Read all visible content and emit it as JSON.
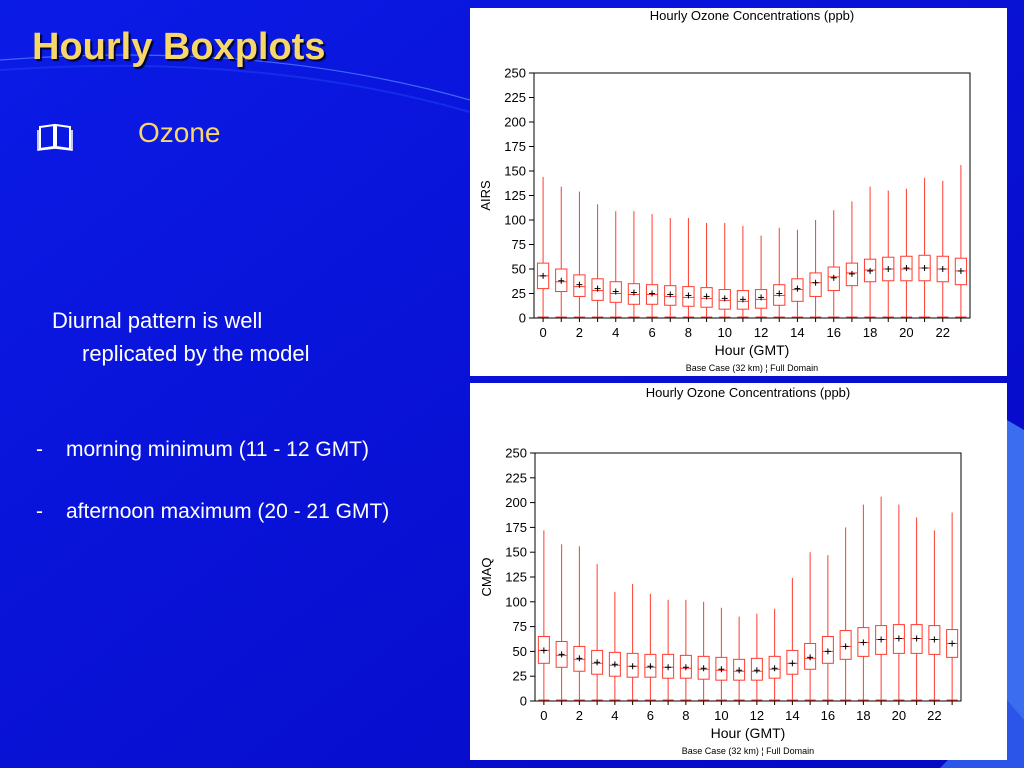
{
  "slide": {
    "title": "Hourly Boxplots",
    "bullet": {
      "icon": "book-icon",
      "label": "Ozone"
    },
    "paragraph": [
      "Diurnal pattern is well",
      "replicated by the model"
    ],
    "items": [
      {
        "dash": "-",
        "text": "morning minimum (11 - 12 GMT)"
      },
      {
        "dash": "-",
        "text": "afternoon maximum (20 - 21 GMT)"
      }
    ]
  },
  "colors": {
    "background": "#0a14d8",
    "title": "#f7d76a",
    "box": "#ff3b2f",
    "text": "#ffffff"
  },
  "chart_data": [
    {
      "type": "boxplot",
      "title": "Hourly Ozone Concentrations (ppb)",
      "xlabel": "Hour (GMT)",
      "ylabel": "AIRS",
      "footer": "Base Case (32 km) ¦ Full Domain",
      "ylim": [
        0,
        250
      ],
      "yticks": [
        0,
        25,
        50,
        75,
        100,
        125,
        150,
        175,
        200,
        225,
        250
      ],
      "xticks": [
        0,
        2,
        4,
        6,
        8,
        10,
        12,
        14,
        16,
        18,
        20,
        22
      ],
      "hours": [
        0,
        1,
        2,
        3,
        4,
        5,
        6,
        7,
        8,
        9,
        10,
        11,
        12,
        13,
        14,
        15,
        16,
        17,
        18,
        19,
        20,
        21,
        22,
        23
      ],
      "min": [
        1,
        1,
        1,
        1,
        1,
        1,
        1,
        1,
        1,
        1,
        1,
        1,
        1,
        1,
        1,
        1,
        1,
        1,
        1,
        1,
        1,
        1,
        1,
        1
      ],
      "q1": [
        30,
        27,
        22,
        18,
        16,
        14,
        14,
        13,
        12,
        11,
        9,
        9,
        10,
        13,
        17,
        22,
        28,
        33,
        37,
        38,
        38,
        38,
        37,
        34
      ],
      "median": [
        43,
        37,
        32,
        28,
        25,
        24,
        24,
        22,
        21,
        20,
        18,
        17,
        19,
        23,
        29,
        36,
        42,
        46,
        49,
        50,
        50,
        51,
        50,
        48
      ],
      "mean": [
        43,
        38,
        34,
        30,
        27,
        26,
        25,
        24,
        23,
        22,
        20,
        19,
        21,
        25,
        30,
        36,
        41,
        45,
        48,
        50,
        51,
        51,
        50,
        48
      ],
      "q3": [
        56,
        50,
        44,
        40,
        37,
        35,
        34,
        33,
        32,
        31,
        29,
        28,
        29,
        34,
        40,
        46,
        52,
        56,
        60,
        62,
        63,
        64,
        63,
        61
      ],
      "max": [
        144,
        134,
        129,
        116,
        109,
        109,
        106,
        102,
        102,
        97,
        97,
        94,
        84,
        92,
        90,
        100,
        110,
        119,
        134,
        130,
        132,
        143,
        140,
        156
      ]
    },
    {
      "type": "boxplot",
      "title": "Hourly Ozone Concentrations (ppb)",
      "xlabel": "Hour (GMT)",
      "ylabel": "CMAQ",
      "footer": "Base Case (32 km) ¦ Full Domain",
      "ylim": [
        0,
        250
      ],
      "yticks": [
        0,
        25,
        50,
        75,
        100,
        125,
        150,
        175,
        200,
        225,
        250
      ],
      "xticks": [
        0,
        2,
        4,
        6,
        8,
        10,
        12,
        14,
        16,
        18,
        20,
        22
      ],
      "hours": [
        0,
        1,
        2,
        3,
        4,
        5,
        6,
        7,
        8,
        9,
        10,
        11,
        12,
        13,
        14,
        15,
        16,
        17,
        18,
        19,
        20,
        21,
        22,
        23
      ],
      "min": [
        1,
        1,
        1,
        1,
        1,
        1,
        1,
        1,
        1,
        1,
        1,
        1,
        1,
        1,
        1,
        1,
        1,
        1,
        1,
        1,
        1,
        1,
        1,
        1
      ],
      "q1": [
        38,
        34,
        30,
        27,
        25,
        24,
        24,
        23,
        23,
        22,
        21,
        21,
        21,
        23,
        27,
        32,
        38,
        42,
        45,
        47,
        48,
        48,
        47,
        44
      ],
      "median": [
        51,
        46,
        42,
        38,
        36,
        35,
        34,
        34,
        33,
        32,
        31,
        30,
        30,
        32,
        38,
        43,
        50,
        55,
        59,
        62,
        63,
        63,
        62,
        58
      ],
      "mean": [
        51,
        47,
        43,
        39,
        37,
        35,
        35,
        34,
        34,
        33,
        32,
        31,
        31,
        33,
        38,
        44,
        50,
        55,
        59,
        62,
        63,
        63,
        62,
        58
      ],
      "q3": [
        65,
        60,
        55,
        51,
        49,
        48,
        47,
        47,
        46,
        45,
        44,
        42,
        43,
        45,
        51,
        58,
        65,
        71,
        74,
        76,
        77,
        77,
        76,
        72
      ],
      "max": [
        172,
        158,
        156,
        138,
        110,
        118,
        108,
        102,
        102,
        100,
        94,
        85,
        88,
        93,
        124,
        150,
        147,
        175,
        198,
        206,
        198,
        185,
        172,
        190
      ]
    }
  ]
}
